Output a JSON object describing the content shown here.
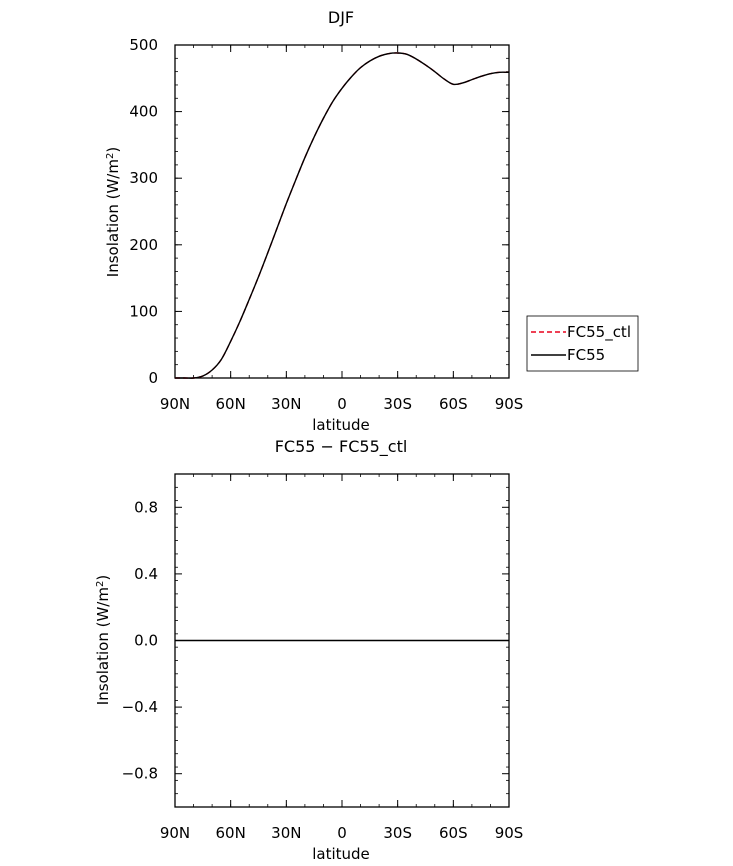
{
  "chart_data": [
    {
      "type": "line",
      "title": "DJF",
      "xlabel": "latitude",
      "ylabel": "Insolation (W/m",
      "ylabel_sup": "2",
      "ylabel_close": ")",
      "xlim": [
        90,
        -90
      ],
      "ylim": [
        0,
        500
      ],
      "x_ticks": [
        90,
        60,
        30,
        0,
        -30,
        -60,
        -90
      ],
      "x_tick_labels": [
        "90N",
        "60N",
        "30N",
        "0",
        "30S",
        "60S",
        "90S"
      ],
      "y_ticks": [
        0,
        100,
        200,
        300,
        400,
        500
      ],
      "y_tick_labels": [
        "0",
        "100",
        "200",
        "300",
        "400",
        "500"
      ],
      "legend": "right",
      "x": [
        90,
        85,
        80,
        75,
        70,
        65,
        60,
        55,
        50,
        45,
        40,
        35,
        30,
        25,
        20,
        15,
        10,
        5,
        0,
        -5,
        -10,
        -15,
        -20,
        -25,
        -30,
        -35,
        -40,
        -45,
        -50,
        -55,
        -60,
        -65,
        -70,
        -75,
        -80,
        -85,
        -90
      ],
      "series": [
        {
          "name": "FC55_ctl",
          "color": "#e8001c",
          "dash": true,
          "values": [
            0,
            0,
            0,
            3,
            12,
            28,
            55,
            85,
            118,
            152,
            188,
            225,
            262,
            297,
            331,
            362,
            390,
            415,
            435,
            452,
            466,
            476,
            483,
            487,
            488,
            486,
            479,
            470,
            460,
            449,
            441,
            443,
            448,
            453,
            457,
            459,
            459
          ]
        },
        {
          "name": "FC55",
          "color": "#000000",
          "dash": false,
          "values": [
            0,
            0,
            0,
            3,
            12,
            28,
            55,
            85,
            118,
            152,
            188,
            225,
            262,
            297,
            331,
            362,
            390,
            415,
            435,
            452,
            466,
            476,
            483,
            487,
            488,
            486,
            479,
            470,
            460,
            449,
            441,
            443,
            448,
            453,
            457,
            459,
            459
          ]
        }
      ]
    },
    {
      "type": "line",
      "title": "FC55 − FC55_ctl",
      "xlabel": "latitude",
      "ylabel": "Insolation (W/m",
      "ylabel_sup": "2",
      "ylabel_close": ")",
      "xlim": [
        90,
        -90
      ],
      "ylim": [
        -1,
        1
      ],
      "x_ticks": [
        90,
        60,
        30,
        0,
        -30,
        -60,
        -90
      ],
      "x_tick_labels": [
        "90N",
        "60N",
        "30N",
        "0",
        "30S",
        "60S",
        "90S"
      ],
      "y_ticks": [
        -0.8,
        -0.4,
        0.0,
        0.4,
        0.8
      ],
      "y_tick_labels": [
        "−0.8",
        "−0.4",
        "0.0",
        "0.4",
        "0.8"
      ],
      "x": [
        90,
        -90
      ],
      "series": [
        {
          "color": "#000000",
          "values": [
            0,
            0
          ]
        }
      ]
    }
  ]
}
